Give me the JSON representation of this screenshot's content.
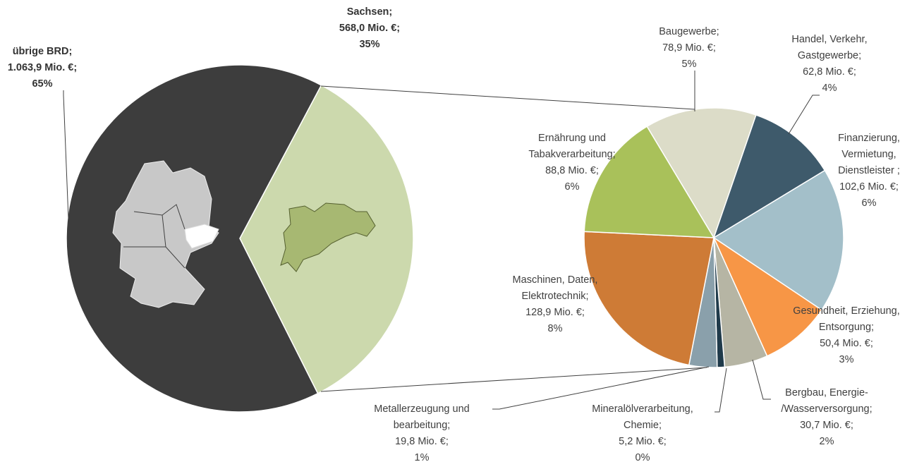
{
  "chart_data": [
    {
      "type": "pie",
      "categories": [
        [
          "Sachsen;"
        ],
        [
          "übrige BRD;"
        ]
      ],
      "values": [
        568.0,
        1063.9
      ],
      "value_labels": [
        "568,0 Mio. €;",
        "1.063,9 Mio. €;"
      ],
      "shares": [
        35,
        65
      ],
      "share_labels": [
        "35%",
        "65%"
      ],
      "colors": [
        "#ccd9ad",
        "#3d3d3d"
      ]
    },
    {
      "type": "pie",
      "categories": [
        [
          "Baugewerbe;"
        ],
        [
          "Handel, Verkehr,",
          "Gastgewerbe;"
        ],
        [
          "Finanzierung,",
          "Vermietung,",
          "Dienstleister ;"
        ],
        [
          "Gesundheit, Erziehung,",
          "Entsorgung;"
        ],
        [
          "Bergbau, Energie-",
          "/Wasserversorgung;"
        ],
        [
          "Mineralölverarbeitung,",
          "Chemie;"
        ],
        [
          "Metallerzeugung und",
          "bearbeitung;"
        ],
        [
          "Maschinen, Daten,",
          "Elektrotechnik;"
        ],
        [
          "Ernährung und",
          "Tabakverarbeitung;"
        ]
      ],
      "values": [
        78.9,
        62.8,
        102.6,
        50.4,
        30.7,
        5.2,
        19.8,
        128.9,
        88.8
      ],
      "value_labels": [
        "78,9 Mio. €;",
        "62,8 Mio. €;",
        "102,6 Mio. €;",
        "50,4 Mio. €;",
        "30,7 Mio. €;",
        "5,2 Mio. €;",
        "19,8 Mio. €;",
        "128,9 Mio. €;",
        "88,8 Mio. €;"
      ],
      "shares": [
        5,
        4,
        6,
        3,
        2,
        0,
        1,
        8,
        6
      ],
      "share_labels": [
        "5%",
        "4%",
        "6%",
        "3%",
        "2%",
        "0%",
        "1%",
        "8%",
        "6%"
      ],
      "colors": [
        "#dcdcc8",
        "#3e5a6b",
        "#a3bfc9",
        "#f79646",
        "#b6b5a4",
        "#1f3a4a",
        "#8aa0ab",
        "#ce7b36",
        "#a9c15a"
      ]
    }
  ]
}
